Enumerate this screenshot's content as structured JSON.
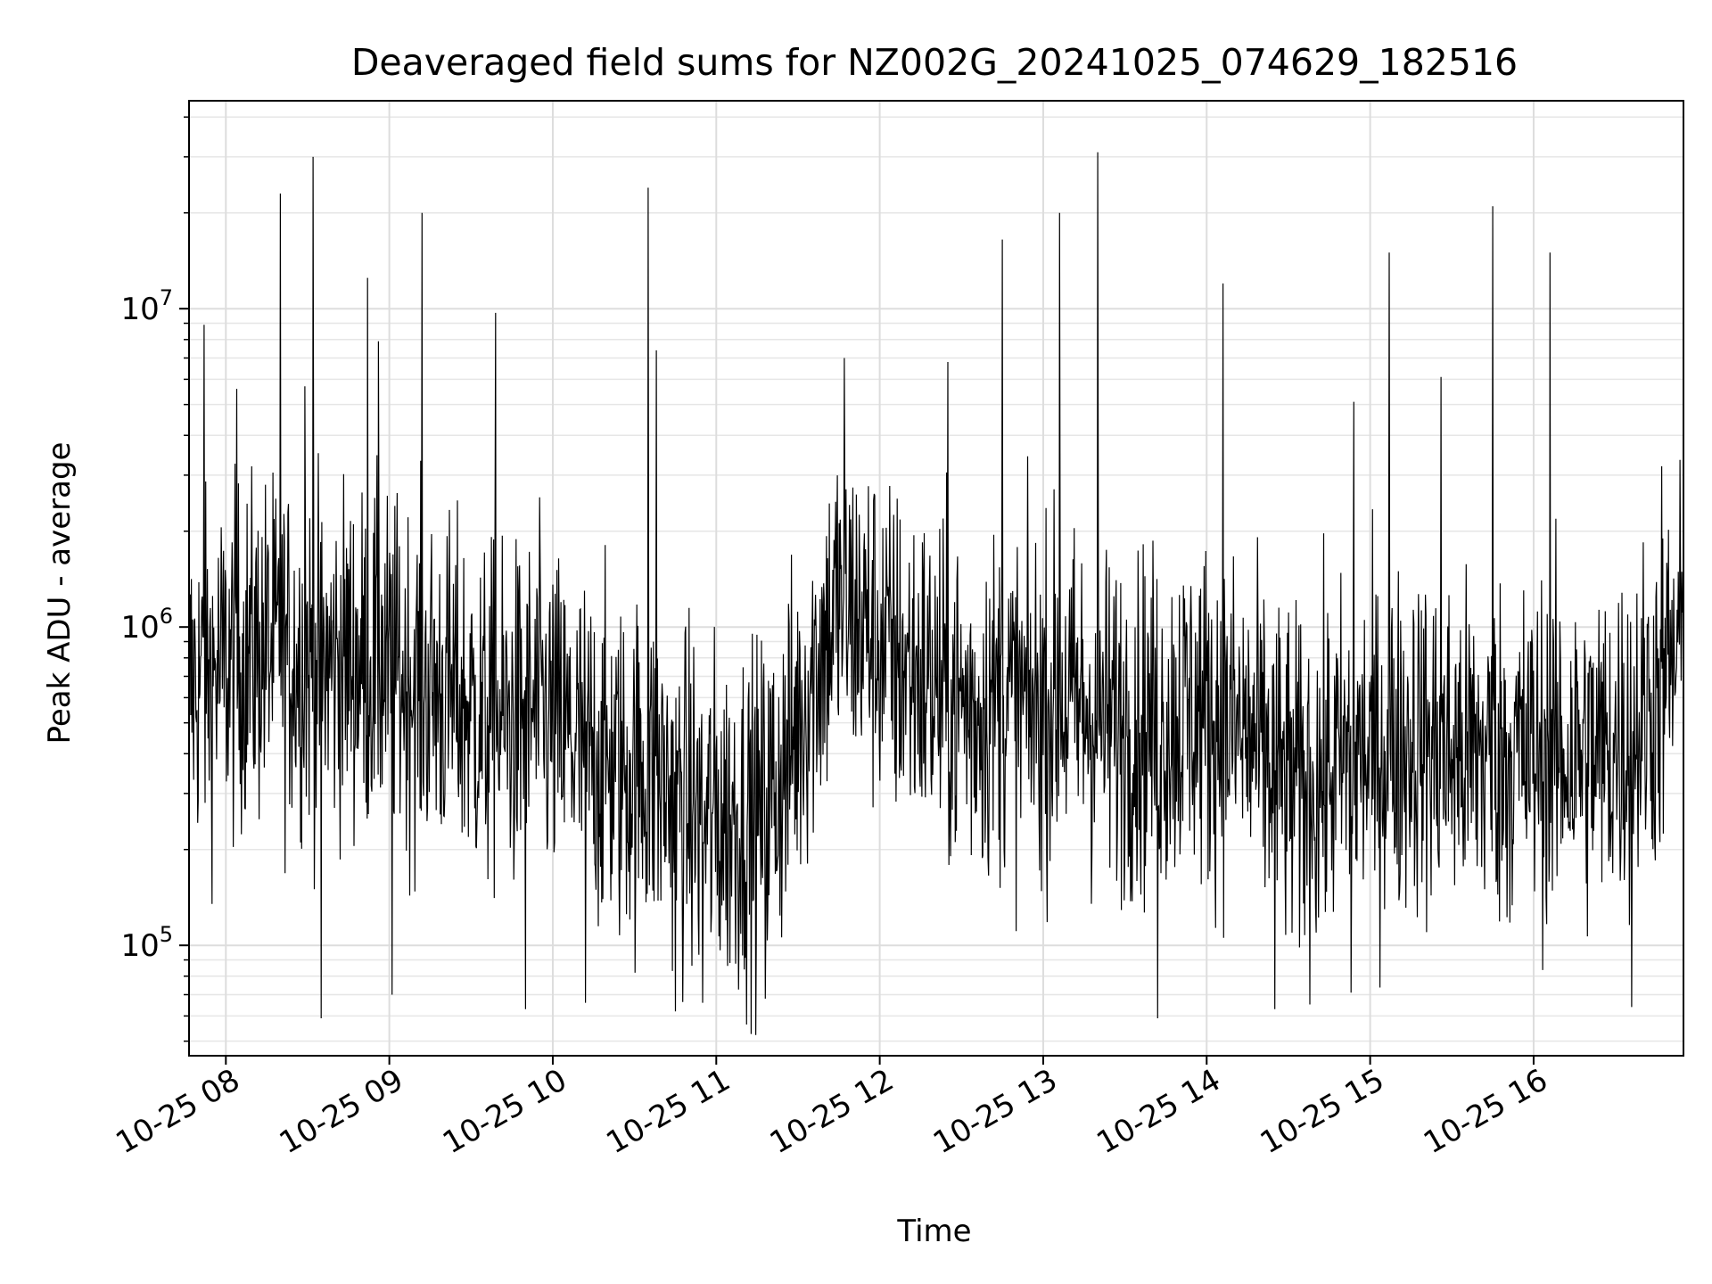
{
  "chart_data": {
    "type": "line",
    "title": "Deaveraged field sums for NZ002G_20241025_074629_182516",
    "xlabel": "Time",
    "ylabel": "Peak ADU - average",
    "y_scale": "log",
    "grid": true,
    "grid_minor": true,
    "line_color": "#000000",
    "x_range": [
      "2024-10-25 07:46:29",
      "2024-10-25 16:55:00"
    ],
    "ylim": [
      45000,
      45000000
    ],
    "x_ticks": [
      {
        "time": "2024-10-25 08:00",
        "label": "10-25 08"
      },
      {
        "time": "2024-10-25 09:00",
        "label": "10-25 09"
      },
      {
        "time": "2024-10-25 10:00",
        "label": "10-25 10"
      },
      {
        "time": "2024-10-25 11:00",
        "label": "10-25 11"
      },
      {
        "time": "2024-10-25 12:00",
        "label": "10-25 12"
      },
      {
        "time": "2024-10-25 13:00",
        "label": "10-25 13"
      },
      {
        "time": "2024-10-25 14:00",
        "label": "10-25 14"
      },
      {
        "time": "2024-10-25 15:00",
        "label": "10-25 15"
      },
      {
        "time": "2024-10-25 16:00",
        "label": "10-25 16"
      }
    ],
    "y_ticks": [
      {
        "value": 100000,
        "base": "10",
        "exp": "5"
      },
      {
        "value": 1000000,
        "base": "10",
        "exp": "6"
      },
      {
        "value": 10000000,
        "base": "10",
        "exp": "7"
      }
    ],
    "series": [
      {
        "values_are": "estimated envelope read from the plot; dense noisy trace",
        "x": [
          "2024-10-25 07:46",
          "2024-10-25 07:55",
          "2024-10-25 08:05",
          "2024-10-25 08:15",
          "2024-10-25 08:25",
          "2024-10-25 08:35",
          "2024-10-25 08:45",
          "2024-10-25 08:55",
          "2024-10-25 09:05",
          "2024-10-25 09:15",
          "2024-10-25 09:25",
          "2024-10-25 09:35",
          "2024-10-25 09:45",
          "2024-10-25 09:55",
          "2024-10-25 10:05",
          "2024-10-25 10:15",
          "2024-10-25 10:25",
          "2024-10-25 10:35",
          "2024-10-25 10:45",
          "2024-10-25 10:55",
          "2024-10-25 11:05",
          "2024-10-25 11:15",
          "2024-10-25 11:25",
          "2024-10-25 11:35",
          "2024-10-25 11:45",
          "2024-10-25 11:55",
          "2024-10-25 12:05",
          "2024-10-25 12:15",
          "2024-10-25 12:25",
          "2024-10-25 12:35",
          "2024-10-25 12:45",
          "2024-10-25 12:55",
          "2024-10-25 13:05",
          "2024-10-25 13:15",
          "2024-10-25 13:25",
          "2024-10-25 13:35",
          "2024-10-25 13:45",
          "2024-10-25 13:55",
          "2024-10-25 14:05",
          "2024-10-25 14:15",
          "2024-10-25 14:25",
          "2024-10-25 14:35",
          "2024-10-25 14:45",
          "2024-10-25 14:55",
          "2024-10-25 15:05",
          "2024-10-25 15:15",
          "2024-10-25 15:25",
          "2024-10-25 15:35",
          "2024-10-25 15:45",
          "2024-10-25 15:55",
          "2024-10-25 16:05",
          "2024-10-25 16:15",
          "2024-10-25 16:25",
          "2024-10-25 16:35",
          "2024-10-25 16:45",
          "2024-10-25 16:55"
        ],
        "y": [
          650000,
          700000,
          800000,
          850000,
          800000,
          750000,
          800000,
          750000,
          700000,
          650000,
          600000,
          500000,
          500000,
          550000,
          450000,
          400000,
          350000,
          350000,
          300000,
          250000,
          250000,
          250000,
          350000,
          700000,
          1200000,
          1000000,
          800000,
          700000,
          600000,
          550000,
          600000,
          550000,
          600000,
          550000,
          500000,
          500000,
          500000,
          550000,
          500000,
          450000,
          350000,
          300000,
          350000,
          400000,
          400000,
          450000,
          400000,
          400000,
          400000,
          400000,
          400000,
          400000,
          400000,
          450000,
          600000,
          900000
        ],
        "spikes": [
          {
            "x": "2024-10-25 07:52",
            "y": 8900000
          },
          {
            "x": "2024-10-25 08:04",
            "y": 5600000
          },
          {
            "x": "2024-10-25 08:20",
            "y": 23000000
          },
          {
            "x": "2024-10-25 08:29",
            "y": 5700000
          },
          {
            "x": "2024-10-25 08:32",
            "y": 30000000
          },
          {
            "x": "2024-10-25 08:52",
            "y": 12500000
          },
          {
            "x": "2024-10-25 08:56",
            "y": 7900000
          },
          {
            "x": "2024-10-25 09:12",
            "y": 20000000
          },
          {
            "x": "2024-10-25 09:39",
            "y": 9700000
          },
          {
            "x": "2024-10-25 10:35",
            "y": 24000000
          },
          {
            "x": "2024-10-25 10:38",
            "y": 7400000
          },
          {
            "x": "2024-10-25 11:47",
            "y": 7000000
          },
          {
            "x": "2024-10-25 12:25",
            "y": 6800000
          },
          {
            "x": "2024-10-25 12:45",
            "y": 16500000
          },
          {
            "x": "2024-10-25 13:06",
            "y": 20000000
          },
          {
            "x": "2024-10-25 13:20",
            "y": 31000000
          },
          {
            "x": "2024-10-25 14:06",
            "y": 12000000
          },
          {
            "x": "2024-10-25 14:54",
            "y": 5100000
          },
          {
            "x": "2024-10-25 15:07",
            "y": 15000000
          },
          {
            "x": "2024-10-25 15:26",
            "y": 6100000
          },
          {
            "x": "2024-10-25 15:45",
            "y": 21000000
          },
          {
            "x": "2024-10-25 16:06",
            "y": 15000000
          },
          {
            "x": "2024-10-25 16:47",
            "y": 3200000
          }
        ],
        "dips": [
          {
            "x": "2024-10-25 08:35",
            "y": 59000
          },
          {
            "x": "2024-10-25 09:01",
            "y": 70000
          },
          {
            "x": "2024-10-25 09:50",
            "y": 63000
          },
          {
            "x": "2024-10-25 10:12",
            "y": 66000
          },
          {
            "x": "2024-10-25 10:45",
            "y": 62000
          },
          {
            "x": "2024-10-25 10:55",
            "y": 66000
          },
          {
            "x": "2024-10-25 11:18",
            "y": 68000
          },
          {
            "x": "2024-10-25 13:42",
            "y": 59000
          },
          {
            "x": "2024-10-25 14:25",
            "y": 63000
          },
          {
            "x": "2024-10-25 14:53",
            "y": 71000
          },
          {
            "x": "2024-10-25 16:36",
            "y": 64000
          }
        ]
      }
    ]
  }
}
